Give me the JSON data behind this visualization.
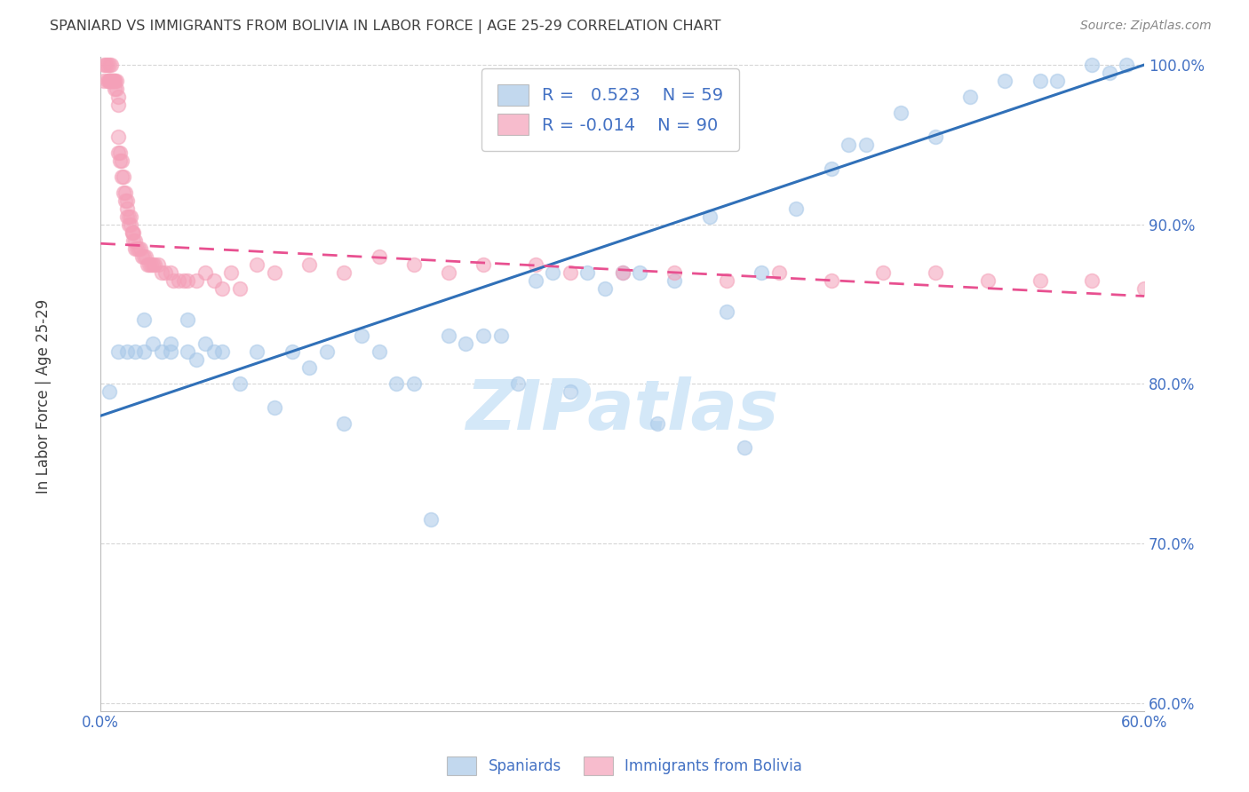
{
  "title": "SPANIARD VS IMMIGRANTS FROM BOLIVIA IN LABOR FORCE | AGE 25-29 CORRELATION CHART",
  "source": "Source: ZipAtlas.com",
  "ylabel": "In Labor Force | Age 25-29",
  "xlim": [
    0.0,
    0.6
  ],
  "ylim": [
    0.595,
    1.005
  ],
  "yticks": [
    0.6,
    0.7,
    0.8,
    0.9,
    1.0
  ],
  "yticklabels": [
    "60.0%",
    "70.0%",
    "80.0%",
    "90.0%",
    "100.0%"
  ],
  "blue_color": "#a8c8e8",
  "pink_color": "#f4a0b8",
  "blue_line_color": "#3070b8",
  "pink_line_color": "#e85090",
  "legend_R_blue": "0.523",
  "legend_N_blue": "59",
  "legend_R_pink": "-0.014",
  "legend_N_pink": "90",
  "legend_label_blue": "Spaniards",
  "legend_label_pink": "Immigrants from Bolivia",
  "watermark": "ZIPatlas",
  "blue_x": [
    0.005,
    0.01,
    0.015,
    0.02,
    0.025,
    0.025,
    0.03,
    0.035,
    0.04,
    0.04,
    0.05,
    0.05,
    0.055,
    0.06,
    0.065,
    0.07,
    0.08,
    0.09,
    0.1,
    0.11,
    0.12,
    0.13,
    0.14,
    0.15,
    0.16,
    0.17,
    0.18,
    0.19,
    0.2,
    0.21,
    0.22,
    0.23,
    0.24,
    0.25,
    0.26,
    0.27,
    0.28,
    0.29,
    0.3,
    0.31,
    0.32,
    0.33,
    0.35,
    0.36,
    0.37,
    0.38,
    0.4,
    0.42,
    0.43,
    0.44,
    0.46,
    0.48,
    0.5,
    0.52,
    0.54,
    0.55,
    0.57,
    0.58,
    0.59
  ],
  "blue_y": [
    0.795,
    0.82,
    0.82,
    0.82,
    0.84,
    0.82,
    0.825,
    0.82,
    0.825,
    0.82,
    0.84,
    0.82,
    0.815,
    0.825,
    0.82,
    0.82,
    0.8,
    0.82,
    0.785,
    0.82,
    0.81,
    0.82,
    0.775,
    0.83,
    0.82,
    0.8,
    0.8,
    0.715,
    0.83,
    0.825,
    0.83,
    0.83,
    0.8,
    0.865,
    0.87,
    0.795,
    0.87,
    0.86,
    0.87,
    0.87,
    0.775,
    0.865,
    0.905,
    0.845,
    0.76,
    0.87,
    0.91,
    0.935,
    0.95,
    0.95,
    0.97,
    0.955,
    0.98,
    0.99,
    0.99,
    0.99,
    1.0,
    0.995,
    1.0
  ],
  "pink_x": [
    0.002,
    0.002,
    0.003,
    0.004,
    0.004,
    0.005,
    0.005,
    0.005,
    0.005,
    0.006,
    0.006,
    0.006,
    0.007,
    0.007,
    0.008,
    0.008,
    0.008,
    0.009,
    0.009,
    0.01,
    0.01,
    0.01,
    0.01,
    0.011,
    0.011,
    0.012,
    0.012,
    0.013,
    0.013,
    0.014,
    0.014,
    0.015,
    0.015,
    0.015,
    0.016,
    0.016,
    0.017,
    0.017,
    0.018,
    0.018,
    0.019,
    0.019,
    0.02,
    0.02,
    0.021,
    0.022,
    0.023,
    0.024,
    0.025,
    0.026,
    0.027,
    0.028,
    0.029,
    0.03,
    0.031,
    0.033,
    0.035,
    0.037,
    0.04,
    0.042,
    0.045,
    0.048,
    0.05,
    0.055,
    0.06,
    0.065,
    0.07,
    0.075,
    0.08,
    0.09,
    0.1,
    0.12,
    0.14,
    0.16,
    0.18,
    0.2,
    0.22,
    0.25,
    0.27,
    0.3,
    0.33,
    0.36,
    0.39,
    0.42,
    0.45,
    0.48,
    0.51,
    0.54,
    0.57,
    0.6
  ],
  "pink_y": [
    0.99,
    1.0,
    1.0,
    1.0,
    0.99,
    0.99,
    1.0,
    0.99,
    0.99,
    0.99,
    0.99,
    1.0,
    0.99,
    0.99,
    0.99,
    0.985,
    0.99,
    0.99,
    0.985,
    0.98,
    0.975,
    0.955,
    0.945,
    0.945,
    0.94,
    0.94,
    0.93,
    0.93,
    0.92,
    0.92,
    0.915,
    0.915,
    0.91,
    0.905,
    0.905,
    0.9,
    0.905,
    0.9,
    0.895,
    0.895,
    0.895,
    0.89,
    0.89,
    0.885,
    0.885,
    0.885,
    0.885,
    0.88,
    0.88,
    0.88,
    0.875,
    0.875,
    0.875,
    0.875,
    0.875,
    0.875,
    0.87,
    0.87,
    0.87,
    0.865,
    0.865,
    0.865,
    0.865,
    0.865,
    0.87,
    0.865,
    0.86,
    0.87,
    0.86,
    0.875,
    0.87,
    0.875,
    0.87,
    0.88,
    0.875,
    0.87,
    0.875,
    0.875,
    0.87,
    0.87,
    0.87,
    0.865,
    0.87,
    0.865,
    0.87,
    0.87,
    0.865,
    0.865,
    0.865,
    0.86
  ],
  "background_color": "#ffffff",
  "grid_color": "#cccccc",
  "tick_color": "#4472c4",
  "title_color": "#404040",
  "watermark_color": "#d4e8f8"
}
